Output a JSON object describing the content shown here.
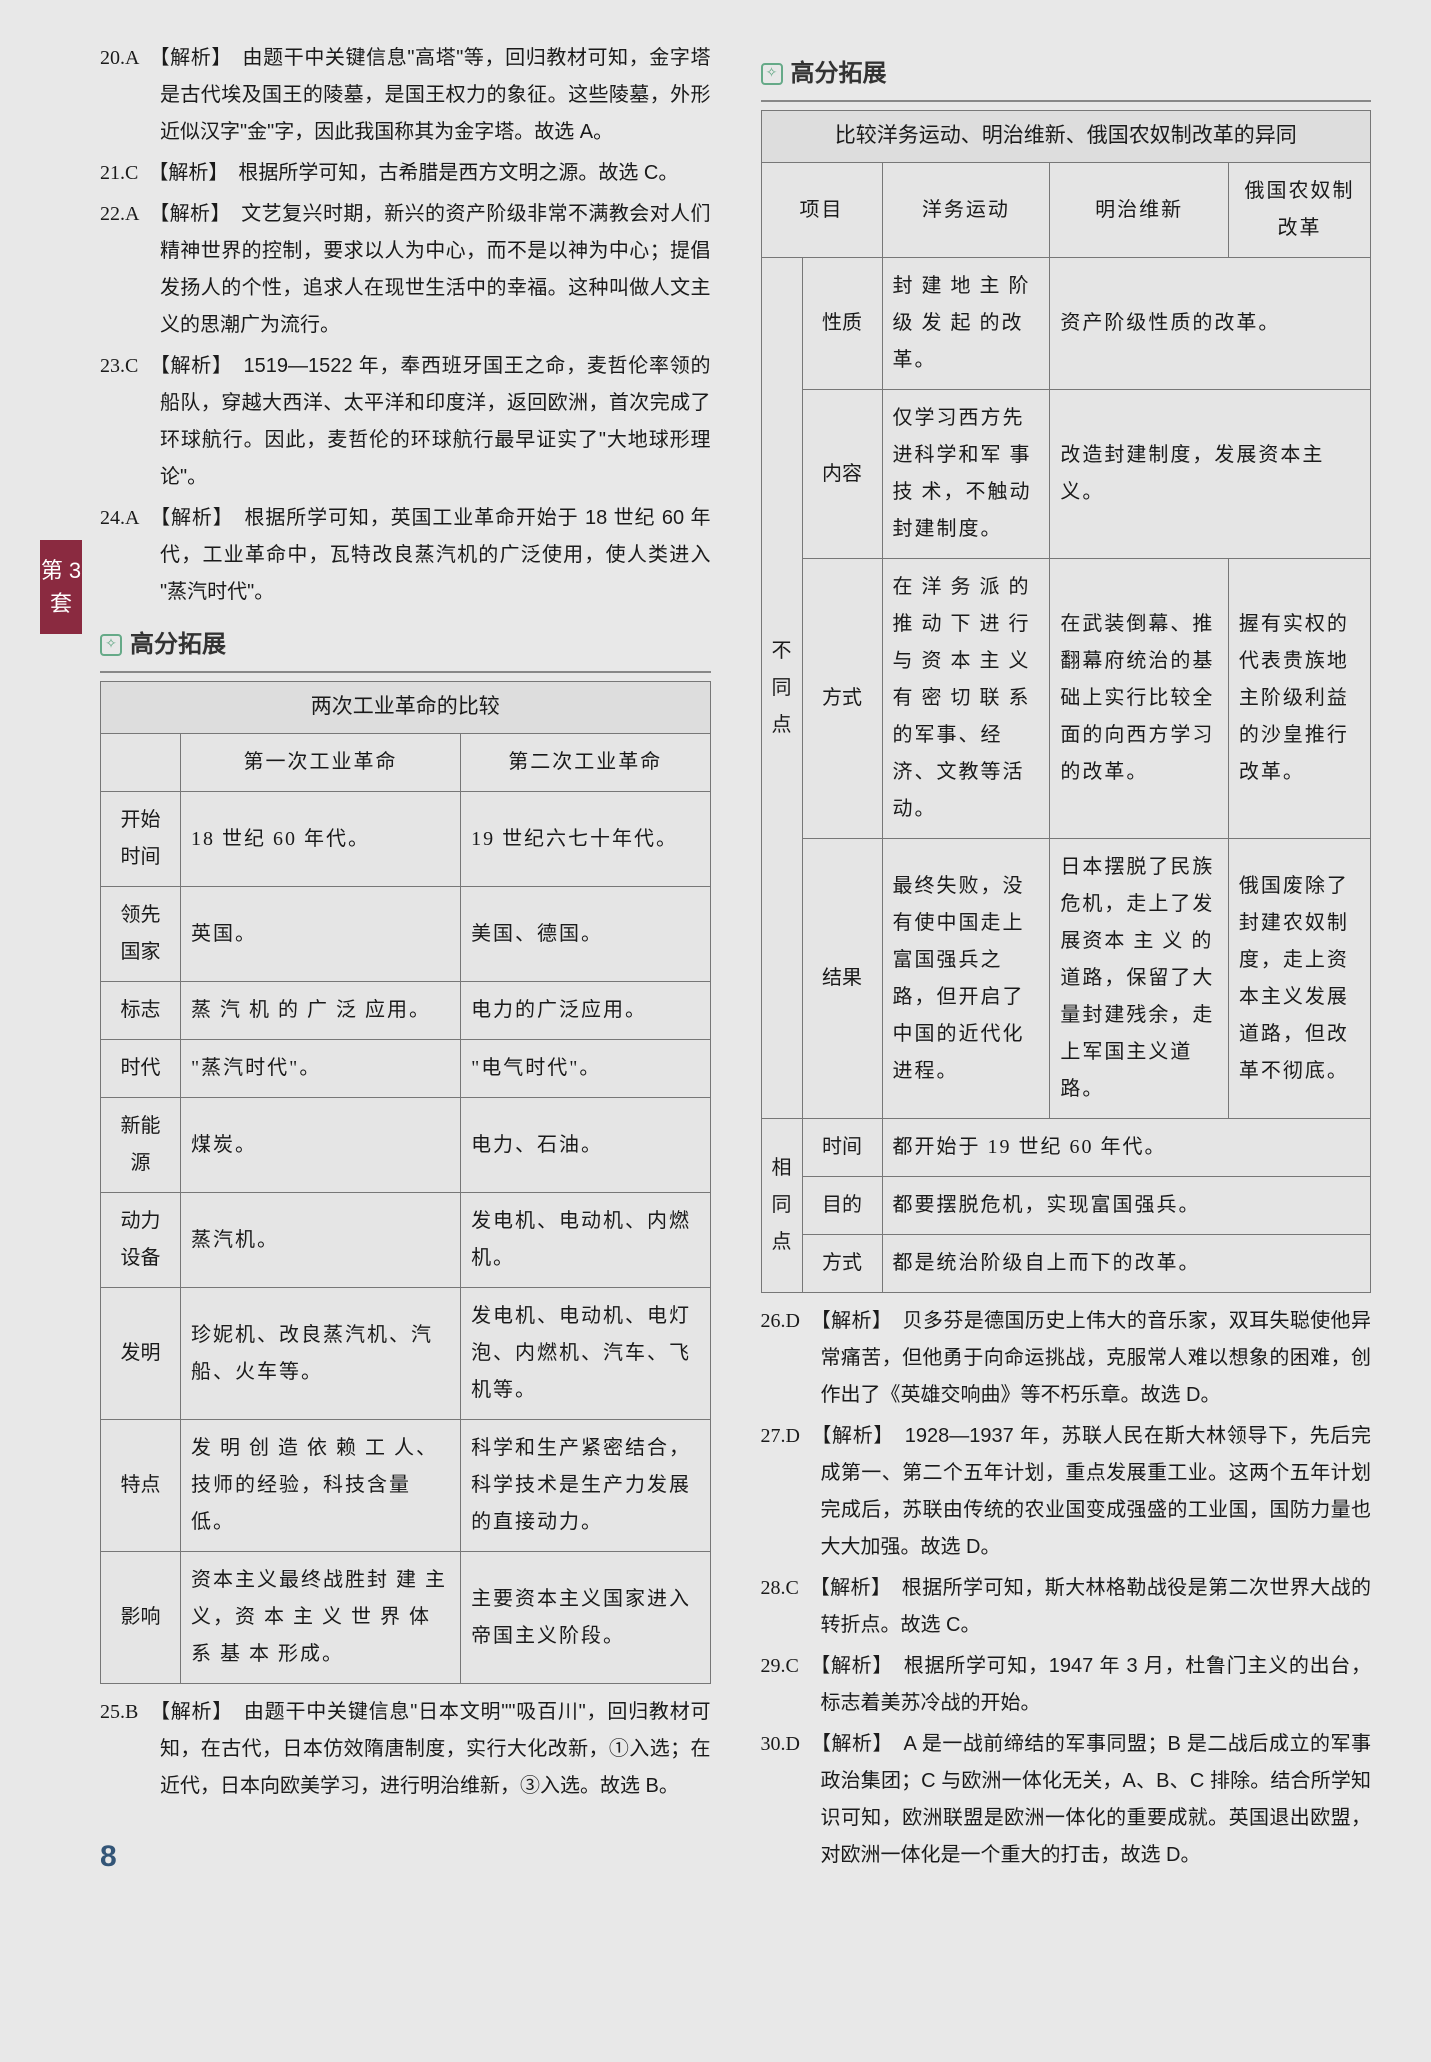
{
  "sideTab": "第 3 套",
  "pageNumber": "8",
  "left": {
    "items": [
      {
        "num": "20.",
        "ans": "A",
        "text": "【解析】　由题干中关键信息\"高塔\"等，回归教材可知，金字塔是古代埃及国王的陵墓，是国王权力的象征。这些陵墓，外形近似汉字\"金\"字，因此我国称其为金字塔。故选 A。"
      },
      {
        "num": "21.",
        "ans": "C",
        "text": "【解析】　根据所学可知，古希腊是西方文明之源。故选 C。"
      },
      {
        "num": "22.",
        "ans": "A",
        "text": "【解析】　文艺复兴时期，新兴的资产阶级非常不满教会对人们精神世界的控制，要求以人为中心，而不是以神为中心；提倡发扬人的个性，追求人在现世生活中的幸福。这种叫做人文主义的思潮广为流行。"
      },
      {
        "num": "23.",
        "ans": "C",
        "text": "【解析】　1519—1522 年，奉西班牙国王之命，麦哲伦率领的船队，穿越大西洋、太平洋和印度洋，返回欧洲，首次完成了环球航行。因此，麦哲伦的环球航行最早证实了\"大地球形理论\"。"
      },
      {
        "num": "24.",
        "ans": "A",
        "text": "【解析】　根据所学可知，英国工业革命开始于 18 世纪 60 年代，工业革命中，瓦特改良蒸汽机的广泛使用，使人类进入 \"蒸汽时代\"。"
      }
    ],
    "section": {
      "title": "高分拓展"
    },
    "table1": {
      "caption": "两次工业革命的比较",
      "headers": [
        "",
        "第一次工业革命",
        "第二次工业革命"
      ],
      "rows": [
        [
          "开始时间",
          "18 世纪 60 年代。",
          "19 世纪六七十年代。"
        ],
        [
          "领先国家",
          "英国。",
          "美国、德国。"
        ],
        [
          "标志",
          "蒸 汽 机 的 广 泛 应用。",
          "电力的广泛应用。"
        ],
        [
          "时代",
          "\"蒸汽时代\"。",
          "\"电气时代\"。"
        ],
        [
          "新能源",
          "煤炭。",
          "电力、石油。"
        ],
        [
          "动力设备",
          "蒸汽机。",
          "发电机、电动机、内燃机。"
        ],
        [
          "发明",
          "珍妮机、改良蒸汽机、汽船、火车等。",
          "发电机、电动机、电灯泡、内燃机、汽车、飞机等。"
        ],
        [
          "特点",
          "发 明 创 造 依 赖 工 人、技师的经验，科技含量低。",
          "科学和生产紧密结合，科学技术是生产力发展的直接动力。"
        ],
        [
          "影响",
          "资本主义最终战胜封 建 主 义，资 本 主 义 世 界 体 系 基 本 形成。",
          "主要资本主义国家进入帝国主义阶段。"
        ]
      ]
    },
    "q25": {
      "num": "25.",
      "ans": "B",
      "text": "【解析】　由题干中关键信息\"日本文明\"\"吸百川\"，回归教材可知，在古代，日本仿效隋唐制度，实行大化改新，①入选；在近代，日本向欧美学习，进行明治维新，③入选。故选 B。"
    }
  },
  "right": {
    "section": {
      "title": "高分拓展"
    },
    "table2": {
      "caption": "比较洋务运动、明治维新、俄国农奴制改革的异同",
      "topHeaders": [
        "项目",
        "洋务运动",
        "明治维新",
        "俄国农奴制改革"
      ],
      "diff": {
        "label": "不 同 点",
        "rows": [
          {
            "aspect": "性质",
            "c1": "封 建 地 主 阶 级 发 起 的改革。",
            "c23": "资产阶级性质的改革。"
          },
          {
            "aspect": "内容",
            "c1": "仅学习西方先进科学和军 事 技 术，不触动封建制度。",
            "c23": "改造封建制度，发展资本主义。"
          },
          {
            "aspect": "方式",
            "c1": "在 洋 务 派 的 推 动 下 进 行 与 资 本 主 义 有 密 切 联 系 的军事、经济、文教等活动。",
            "c2": "在武装倒幕、推翻幕府统治的基础上实行比较全面的向西方学习的改革。",
            "c3": "握有实权的代表贵族地主阶级利益的沙皇推行改革。"
          },
          {
            "aspect": "结果",
            "c1": "最终失败，没有使中国走上富国强兵之路，但开启了中国的近代化进程。",
            "c2": "日本摆脱了民族危机，走上了发展资本 主 义 的 道路，保留了大量封建残余，走上军国主义道路。",
            "c3": "俄国废除了封建农奴制度，走上资本主义发展道路，但改革不彻底。"
          }
        ]
      },
      "same": {
        "label": "相 同 点",
        "rows": [
          {
            "aspect": "时间",
            "text": "都开始于 19 世纪 60 年代。"
          },
          {
            "aspect": "目的",
            "text": "都要摆脱危机，实现富国强兵。"
          },
          {
            "aspect": "方式",
            "text": "都是统治阶级自上而下的改革。"
          }
        ]
      }
    },
    "items": [
      {
        "num": "26.",
        "ans": "D",
        "text": "【解析】　贝多芬是德国历史上伟大的音乐家，双耳失聪使他异常痛苦，但他勇于向命运挑战，克服常人难以想象的困难，创作出了《英雄交响曲》等不朽乐章。故选 D。"
      },
      {
        "num": "27.",
        "ans": "D",
        "text": "【解析】　1928—1937 年，苏联人民在斯大林领导下，先后完成第一、第二个五年计划，重点发展重工业。这两个五年计划完成后，苏联由传统的农业国变成强盛的工业国，国防力量也大大加强。故选 D。"
      },
      {
        "num": "28.",
        "ans": "C",
        "text": "【解析】　根据所学可知，斯大林格勒战役是第二次世界大战的转折点。故选 C。"
      },
      {
        "num": "29.",
        "ans": "C",
        "text": "【解析】　根据所学可知，1947 年 3 月，杜鲁门主义的出台，标志着美苏冷战的开始。"
      },
      {
        "num": "30.",
        "ans": "D",
        "text": "【解析】　A 是一战前缔结的军事同盟；B 是二战后成立的军事政治集团；C 与欧洲一体化无关，A、B、C 排除。结合所学知识可知，欧洲联盟是欧洲一体化的重要成就。英国退出欧盟，对欧洲一体化是一个重大的打击，故选 D。"
      }
    ]
  }
}
